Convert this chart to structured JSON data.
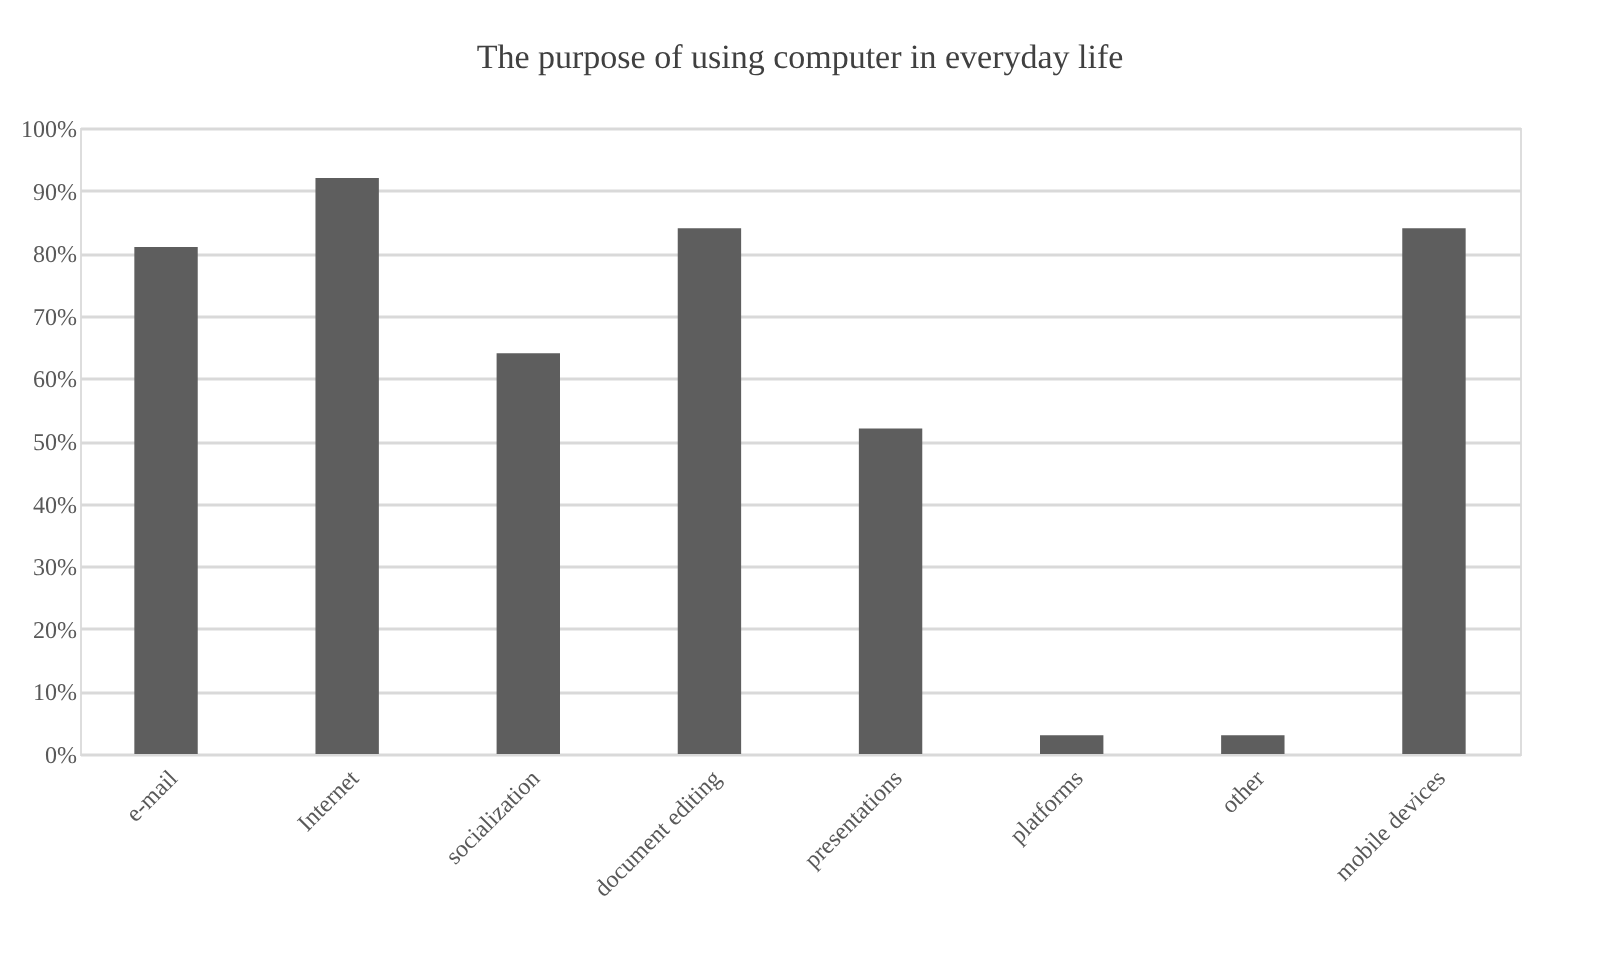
{
  "chart_data": {
    "type": "bar",
    "title": "The purpose of using computer in everyday life",
    "categories": [
      "e-mail",
      "Internet",
      "socialization",
      "document editing",
      "presentations",
      "platforms",
      "other",
      "mobile devices"
    ],
    "values": [
      81,
      92,
      64,
      84,
      52,
      3,
      3,
      84
    ],
    "color": "#5e5e5e",
    "ylim": [
      0,
      100
    ],
    "yticks": [
      {
        "value": 0,
        "label": "0%"
      },
      {
        "value": 10,
        "label": "10%"
      },
      {
        "value": 20,
        "label": "20%"
      },
      {
        "value": 30,
        "label": "30%"
      },
      {
        "value": 40,
        "label": "40%"
      },
      {
        "value": 50,
        "label": "50%"
      },
      {
        "value": 60,
        "label": "60%"
      },
      {
        "value": 70,
        "label": "70%"
      },
      {
        "value": 80,
        "label": "80%"
      },
      {
        "value": 90,
        "label": "90%"
      },
      {
        "value": 100,
        "label": "100%"
      }
    ],
    "grid": "y"
  }
}
